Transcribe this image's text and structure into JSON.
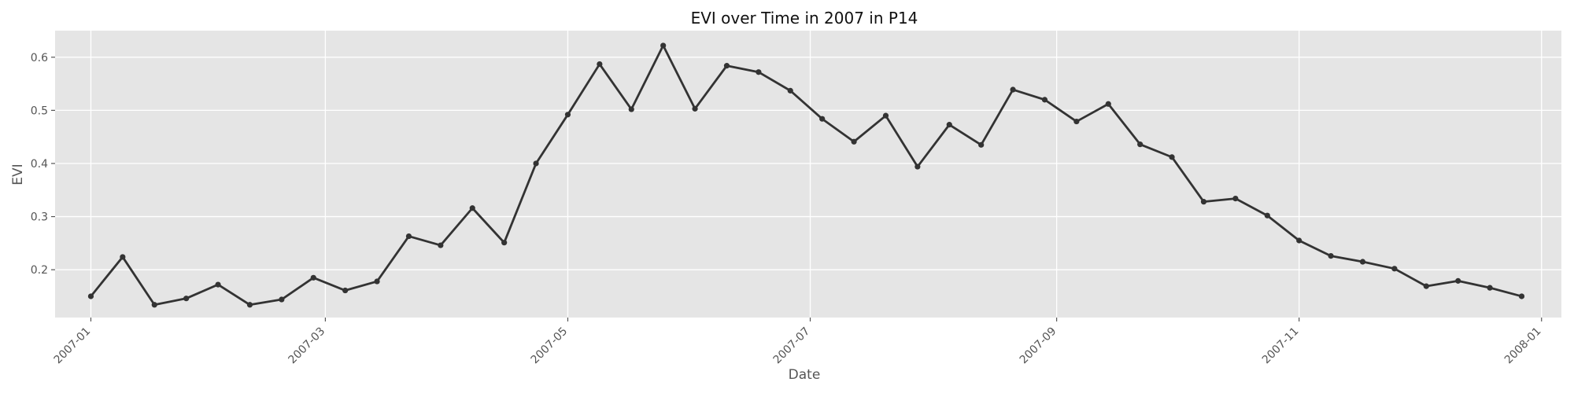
{
  "chart_data": {
    "type": "line",
    "title": "EVI over Time in 2007 in P14",
    "xlabel": "Date",
    "ylabel": "EVI",
    "grid": true,
    "legend": "none",
    "colors": {
      "line": "#333333",
      "plot_background": "#e5e5e5",
      "grid": "#ffffff"
    },
    "xlim": [
      "2006-12-23",
      "2008-01-06"
    ],
    "ylim": [
      0.11,
      0.65
    ],
    "x_ticks": [
      {
        "date": "2007-01-01",
        "label": "2007-01"
      },
      {
        "date": "2007-03-01",
        "label": "2007-03"
      },
      {
        "date": "2007-05-01",
        "label": "2007-05"
      },
      {
        "date": "2007-07-01",
        "label": "2007-07"
      },
      {
        "date": "2007-09-01",
        "label": "2007-09"
      },
      {
        "date": "2007-11-01",
        "label": "2007-11"
      },
      {
        "date": "2008-01-01",
        "label": "2008-01"
      }
    ],
    "y_ticks": [
      {
        "value": 0.2,
        "label": "0.2"
      },
      {
        "value": 0.3,
        "label": "0.3"
      },
      {
        "value": 0.4,
        "label": "0.4"
      },
      {
        "value": 0.5,
        "label": "0.5"
      },
      {
        "value": 0.6,
        "label": "0.6"
      }
    ],
    "series": [
      {
        "x": [
          "2007-01-01",
          "2007-01-09",
          "2007-01-17",
          "2007-01-25",
          "2007-02-02",
          "2007-02-10",
          "2007-02-18",
          "2007-02-26",
          "2007-03-06",
          "2007-03-14",
          "2007-03-22",
          "2007-03-30",
          "2007-04-07",
          "2007-04-15",
          "2007-04-23",
          "2007-05-01",
          "2007-05-09",
          "2007-05-17",
          "2007-05-25",
          "2007-06-02",
          "2007-06-10",
          "2007-06-18",
          "2007-06-26",
          "2007-07-04",
          "2007-07-12",
          "2007-07-20",
          "2007-07-28",
          "2007-08-05",
          "2007-08-13",
          "2007-08-21",
          "2007-08-29",
          "2007-09-06",
          "2007-09-14",
          "2007-09-22",
          "2007-09-30",
          "2007-10-08",
          "2007-10-16",
          "2007-10-24",
          "2007-11-01",
          "2007-11-09",
          "2007-11-17",
          "2007-11-25",
          "2007-12-03",
          "2007-12-11",
          "2007-12-19",
          "2007-12-27"
        ],
        "y": [
          0.15,
          0.224,
          0.134,
          0.146,
          0.172,
          0.134,
          0.144,
          0.185,
          0.161,
          0.178,
          0.263,
          0.246,
          0.316,
          0.251,
          0.4,
          0.492,
          0.587,
          0.502,
          0.622,
          0.503,
          0.584,
          0.572,
          0.537,
          0.484,
          0.441,
          0.49,
          0.394,
          0.473,
          0.435,
          0.539,
          0.52,
          0.479,
          0.512,
          0.436,
          0.412,
          0.328,
          0.334,
          0.302,
          0.255,
          0.226,
          0.215,
          0.202,
          0.169,
          0.179,
          0.166,
          0.15
        ]
      }
    ]
  }
}
